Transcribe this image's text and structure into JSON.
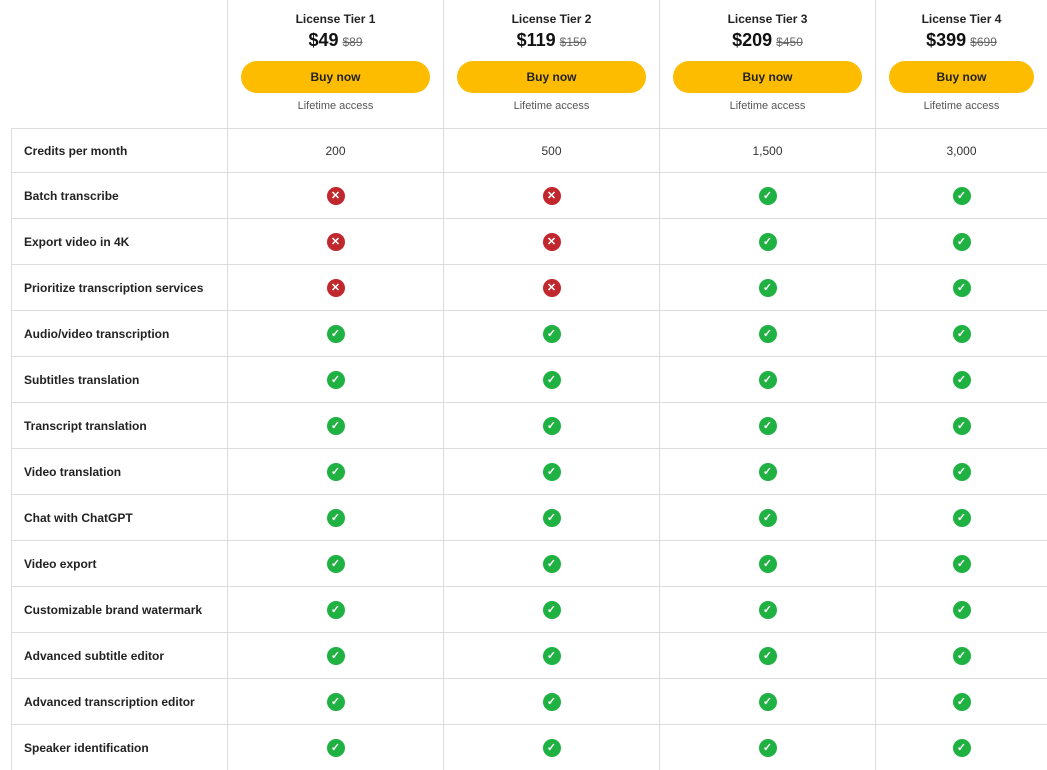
{
  "colors": {
    "accent": "#fdbc00",
    "check": "#1fb141",
    "cross": "#c0282d"
  },
  "tiers": [
    {
      "name": "License Tier 1",
      "price": "$49",
      "old_price": "$89",
      "button": "Buy now",
      "note": "Lifetime access"
    },
    {
      "name": "License Tier 2",
      "price": "$119",
      "old_price": "$150",
      "button": "Buy now",
      "note": "Lifetime access"
    },
    {
      "name": "License Tier 3",
      "price": "$209",
      "old_price": "$450",
      "button": "Buy now",
      "note": "Lifetime access"
    },
    {
      "name": "License Tier 4",
      "price": "$399",
      "old_price": "$699",
      "button": "Buy now",
      "note": "Lifetime access"
    }
  ],
  "credits": {
    "label": "Credits per month",
    "values": [
      "200",
      "500",
      "1,500",
      "3,000"
    ]
  },
  "features": [
    {
      "label": "Batch transcribe",
      "values": [
        false,
        false,
        true,
        true
      ]
    },
    {
      "label": "Export video in 4K",
      "values": [
        false,
        false,
        true,
        true
      ]
    },
    {
      "label": "Prioritize transcription services",
      "values": [
        false,
        false,
        true,
        true
      ]
    },
    {
      "label": "Audio/video transcription",
      "values": [
        true,
        true,
        true,
        true
      ]
    },
    {
      "label": "Subtitles translation",
      "values": [
        true,
        true,
        true,
        true
      ]
    },
    {
      "label": "Transcript translation",
      "values": [
        true,
        true,
        true,
        true
      ]
    },
    {
      "label": "Video translation",
      "values": [
        true,
        true,
        true,
        true
      ]
    },
    {
      "label": "Chat with ChatGPT",
      "values": [
        true,
        true,
        true,
        true
      ]
    },
    {
      "label": "Video export",
      "values": [
        true,
        true,
        true,
        true
      ]
    },
    {
      "label": "Customizable brand watermark",
      "values": [
        true,
        true,
        true,
        true
      ]
    },
    {
      "label": "Advanced subtitle editor",
      "values": [
        true,
        true,
        true,
        true
      ]
    },
    {
      "label": "Advanced transcription editor",
      "values": [
        true,
        true,
        true,
        true
      ]
    },
    {
      "label": "Speaker identification",
      "values": [
        true,
        true,
        true,
        true
      ]
    }
  ]
}
